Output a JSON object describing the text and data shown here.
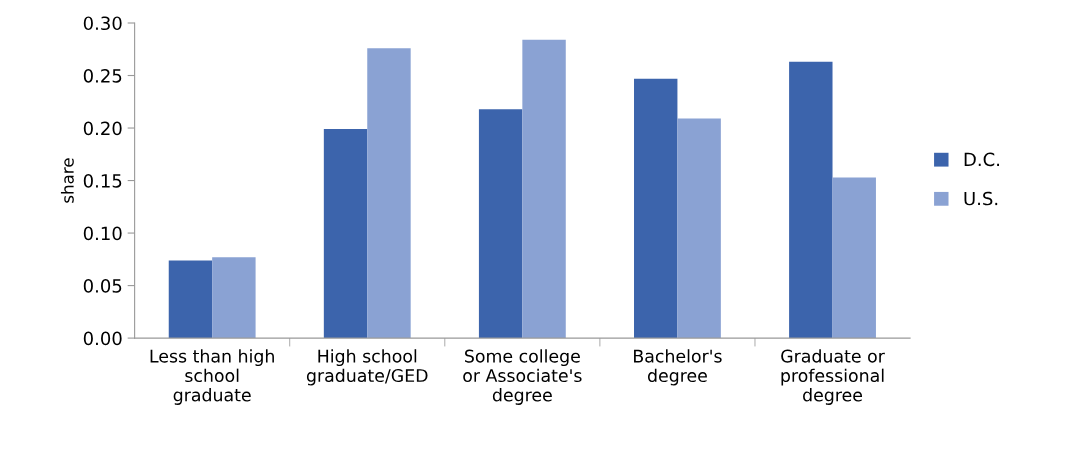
{
  "chart_data": {
    "type": "bar",
    "ylabel": "share",
    "categories": [
      "Less than high\nschool\ngraduate",
      "High school\ngraduate/GED",
      "Some college\nor Associate's\ndegree",
      "Bachelor's\ndegree",
      "Graduate or\nprofessional\ndegree"
    ],
    "series": [
      {
        "name": "D.C.",
        "color": "#3c64ac",
        "values": [
          0.074,
          0.199,
          0.218,
          0.247,
          0.263
        ]
      },
      {
        "name": "U.S.",
        "color": "#8aa2d3",
        "values": [
          0.077,
          0.276,
          0.284,
          0.209,
          0.153
        ]
      }
    ],
    "ylim": [
      0,
      0.3
    ],
    "yticks": [
      {
        "value": 0,
        "label": "0.00"
      },
      {
        "value": 0.05,
        "label": "0.05"
      },
      {
        "value": 0.1,
        "label": "0.10"
      },
      {
        "value": 0.15,
        "label": "0.15"
      },
      {
        "value": 0.2,
        "label": "0.20"
      },
      {
        "value": 0.25,
        "label": "0.25"
      },
      {
        "value": 0.3,
        "label": "0.30"
      }
    ],
    "grid": false,
    "legend": "right"
  }
}
